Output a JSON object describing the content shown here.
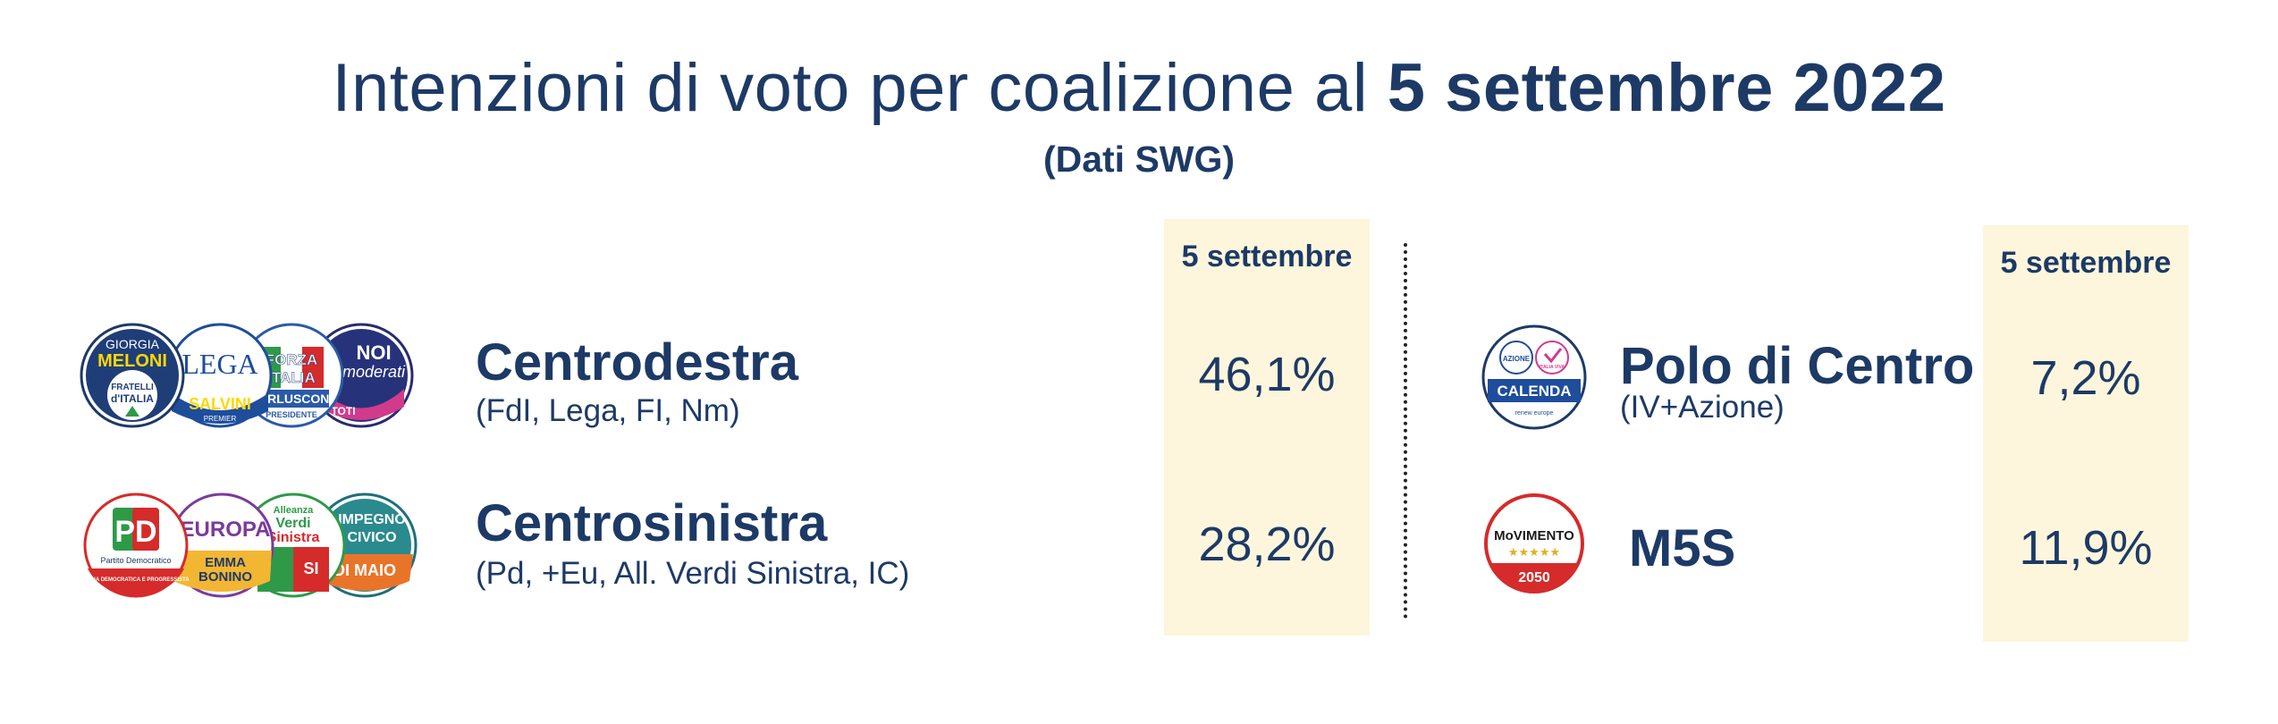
{
  "title": {
    "prefix": "Intenzioni di voto per coalizione al",
    "bold": "5 settembre 2022"
  },
  "subtitle": "(Dati SWG)",
  "left_table": {
    "column_header": "5 settembre",
    "rows": [
      {
        "name": "Centrodestra",
        "parties": "(FdI, Lega, FI, Nm)",
        "value": "46,1%",
        "logos": [
          {
            "icon": "fratelli-ditalia-logo",
            "lines": [
              "GIORGIA",
              "MELONI",
              "FRATELLI",
              "d'ITALIA"
            ]
          },
          {
            "icon": "lega-logo",
            "lines": [
              "LEGA",
              "SALVINI",
              "PREMIER"
            ]
          },
          {
            "icon": "forza-italia-logo",
            "lines": [
              "FORZA",
              "ITALIA",
              "BERLUSCONI",
              "PRESIDENTE"
            ]
          },
          {
            "icon": "noi-moderati-logo",
            "lines": [
              "NOI",
              "moderati",
              "TOTI"
            ]
          }
        ]
      },
      {
        "name": "Centrosinistra",
        "parties": "(Pd, +Eu, All. Verdi Sinistra, IC)",
        "value": "28,2%",
        "logos": [
          {
            "icon": "pd-logo",
            "lines": [
              "PD",
              "Partito Democratico",
              "ITALIA DEMOCRATICA E PROGRESSISTA"
            ]
          },
          {
            "icon": "piu-europa-logo",
            "lines": [
              "EUROPA",
              "EMMA",
              "BONINO"
            ]
          },
          {
            "icon": "alleanza-verdi-sinistra-logo",
            "lines": [
              "Alleanza",
              "Verdi",
              "Sinistra",
              "SI"
            ]
          },
          {
            "icon": "impegno-civico-logo",
            "lines": [
              "IMPEGNO",
              "CIVICO",
              "DI MAIO"
            ]
          }
        ]
      }
    ]
  },
  "right_table": {
    "column_header": "5 settembre",
    "rows": [
      {
        "name": "Polo di Centro",
        "parties": "(IV+Azione)",
        "value": "7,2%",
        "logos": [
          {
            "icon": "azione-italia-viva-logo",
            "lines": [
              "AZIONE",
              "ITALIA VIVA",
              "CALENDA",
              "renew europe"
            ]
          }
        ]
      },
      {
        "name": "M5S",
        "parties": "",
        "value": "11,9%",
        "logos": [
          {
            "icon": "movimento-5-stelle-logo",
            "lines": [
              "MoVIMENTO",
              "★★★★★",
              "2050"
            ]
          }
        ]
      }
    ]
  },
  "colors": {
    "text": "#1d3a66",
    "column_highlight": "#fdf6dc",
    "divider": "#222222"
  },
  "chart_data": {
    "type": "table",
    "title": "Intenzioni di voto per coalizione al 5 settembre 2022",
    "subtitle": "(Dati SWG)",
    "column_header": "5 settembre",
    "unit": "%",
    "categories": [
      "Centrodestra",
      "Centrosinistra",
      "Polo di Centro",
      "M5S"
    ],
    "values": [
      46.1,
      28.2,
      7.2,
      11.9
    ]
  }
}
